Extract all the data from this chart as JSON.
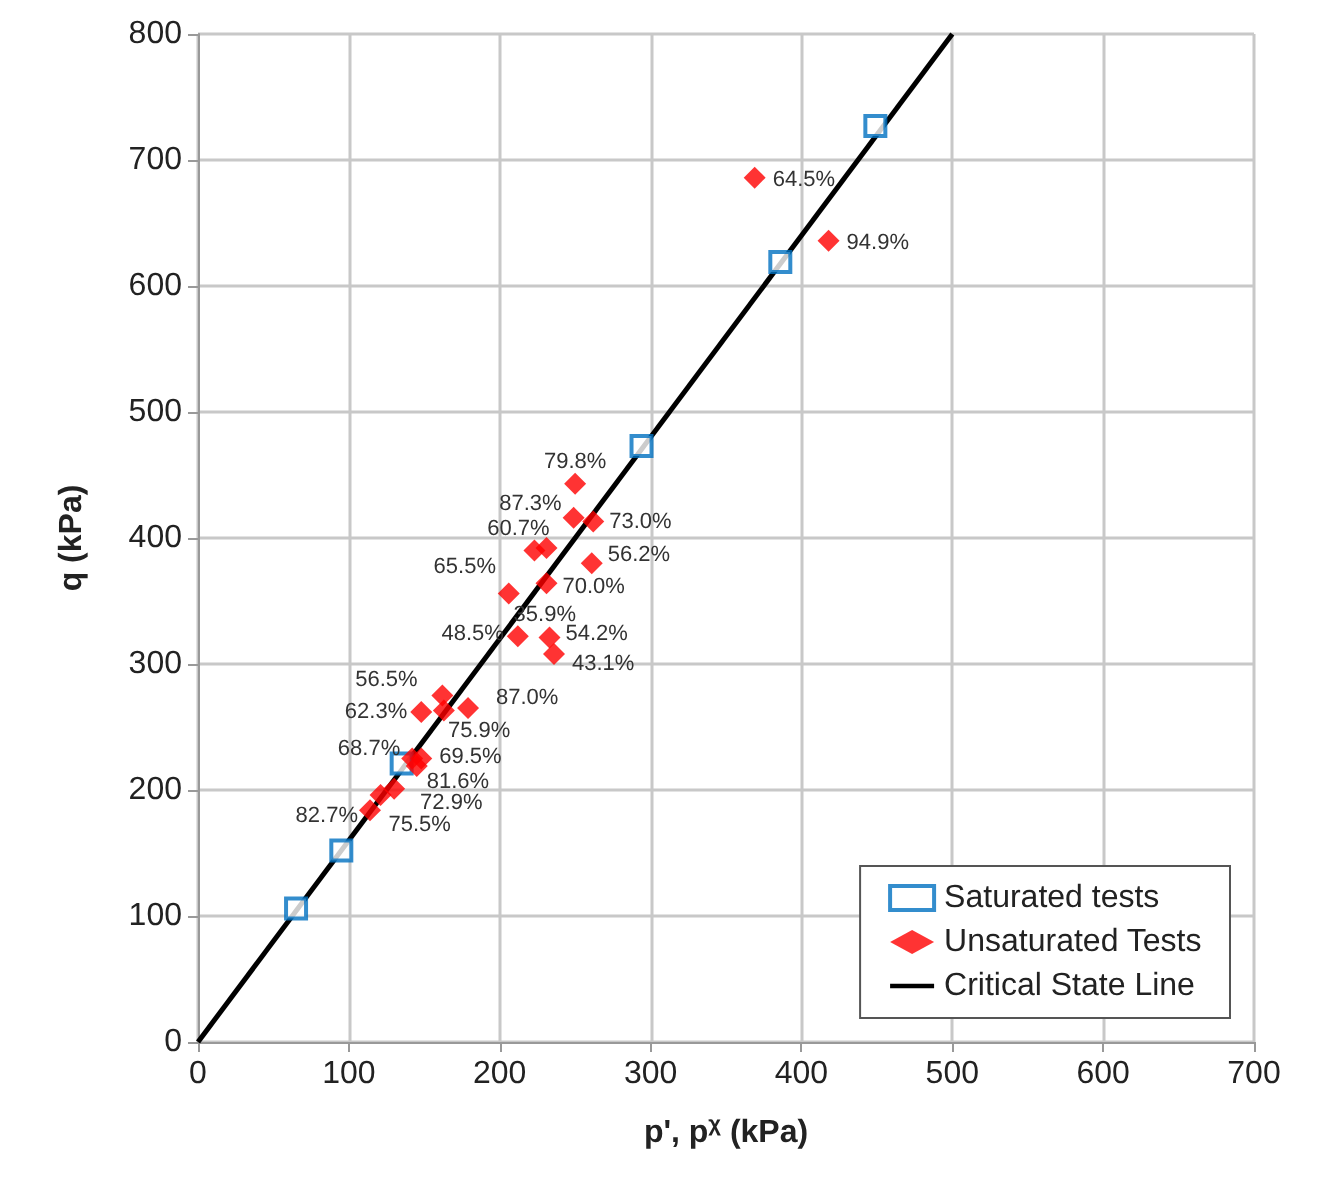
{
  "chart_data": {
    "type": "scatter",
    "xlabel": "p', p$^{χ}$ (kPa)",
    "ylabel": "q (kPa)",
    "xlim": [
      0,
      700
    ],
    "xticks": [
      0,
      100,
      200,
      300,
      400,
      500,
      600,
      700
    ],
    "ylim": [
      0,
      800
    ],
    "yticks": [
      0,
      100,
      200,
      300,
      400,
      500,
      600,
      700,
      800
    ],
    "grid": true,
    "legend": "bottom right",
    "series": [
      {
        "name": "Saturated tests",
        "color": "#0070c0",
        "marker": "square",
        "x": [
          65,
          95,
          135,
          294,
          386,
          449
        ],
        "values": [
          106,
          152,
          221,
          473,
          619,
          727
        ]
      },
      {
        "name": "Unsaturated Tests",
        "color": "#ff0000",
        "marker": "diamond",
        "x": [
          369,
          418,
          250,
          249,
          262,
          223,
          231,
          261,
          206,
          231,
          212,
          233,
          236,
          162,
          148,
          163,
          179,
          142,
          148,
          145,
          130,
          121,
          114
        ],
        "values": [
          686,
          636,
          443,
          416,
          413,
          390,
          392,
          380,
          356,
          364,
          322,
          321,
          308,
          275,
          262,
          263,
          265,
          225,
          225,
          219,
          201,
          196,
          184
        ]
      },
      {
        "name": "Critical State Line",
        "type": "line",
        "color": "#000000",
        "marker": "none",
        "line_style": "solid",
        "x": [
          0,
          500
        ],
        "values": [
          0,
          800
        ]
      }
    ],
    "annotations": [
      {
        "text": "64.5%",
        "x": 369,
        "y": 686
      },
      {
        "text": "94.9%",
        "x": 418,
        "y": 636
      },
      {
        "text": "79.8%",
        "x": 250,
        "y": 443
      },
      {
        "text": "87.3%",
        "x": 249,
        "y": 416
      },
      {
        "text": "73.0%",
        "x": 262,
        "y": 413
      },
      {
        "text": "60.7%",
        "x": 223,
        "y": 390
      },
      {
        "text": "35.9%",
        "x": 206,
        "y": 356
      },
      {
        "text": "56.2%",
        "x": 261,
        "y": 380
      },
      {
        "text": "65.5%",
        "x": 206,
        "y": 356
      },
      {
        "text": "70.0%",
        "x": 231,
        "y": 364
      },
      {
        "text": "48.5%",
        "x": 212,
        "y": 322
      },
      {
        "text": "54.2%",
        "x": 233,
        "y": 321
      },
      {
        "text": "43.1%",
        "x": 236,
        "y": 308
      },
      {
        "text": "56.5%",
        "x": 162,
        "y": 275
      },
      {
        "text": "62.3%",
        "x": 148,
        "y": 262
      },
      {
        "text": "75.9%",
        "x": 163,
        "y": 263
      },
      {
        "text": "87.0%",
        "x": 179,
        "y": 265
      },
      {
        "text": "68.7%",
        "x": 142,
        "y": 225
      },
      {
        "text": "69.5%",
        "x": 148,
        "y": 225
      },
      {
        "text": "81.6%",
        "x": 145,
        "y": 219
      },
      {
        "text": "72.9%",
        "x": 130,
        "y": 201
      },
      {
        "text": "75.5%",
        "x": 121,
        "y": 196
      },
      {
        "text": "82.7%",
        "x": 114,
        "y": 184
      }
    ]
  }
}
